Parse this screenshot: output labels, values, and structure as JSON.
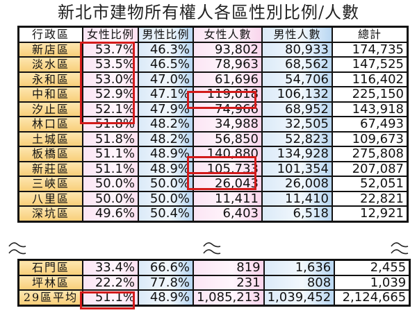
{
  "title": "新北市建物所有權人各區性別比例/人數",
  "headers": {
    "district": "行政區",
    "female_ratio": "女性比例",
    "male_ratio": "男性比例",
    "female_count": "女性人數",
    "male_count": "男性人數",
    "total": "總計"
  },
  "rows": [
    {
      "district": "新店區",
      "female_ratio": "53.7%",
      "male_ratio": "46.3%",
      "female_count": "93,802",
      "male_count": "80,933",
      "total": "174,735"
    },
    {
      "district": "淡水區",
      "female_ratio": "53.5%",
      "male_ratio": "46.5%",
      "female_count": "78,963",
      "male_count": "68,562",
      "total": "147,525"
    },
    {
      "district": "永和區",
      "female_ratio": "53.0%",
      "male_ratio": "47.0%",
      "female_count": "61,696",
      "male_count": "54,706",
      "total": "116,402"
    },
    {
      "district": "中和區",
      "female_ratio": "52.9%",
      "male_ratio": "47.1%",
      "female_count": "119,018",
      "male_count": "106,132",
      "total": "225,150"
    },
    {
      "district": "汐止區",
      "female_ratio": "52.1%",
      "male_ratio": "47.9%",
      "female_count": "74,966",
      "male_count": "68,952",
      "total": "143,918"
    },
    {
      "district": "林口區",
      "female_ratio": "51.8%",
      "male_ratio": "48.2%",
      "female_count": "34,988",
      "male_count": "32,505",
      "total": "67,493"
    },
    {
      "district": "土城區",
      "female_ratio": "51.8%",
      "male_ratio": "48.2%",
      "female_count": "56,850",
      "male_count": "52,823",
      "total": "109,673"
    },
    {
      "district": "板橋區",
      "female_ratio": "51.1%",
      "male_ratio": "48.9%",
      "female_count": "140,880",
      "male_count": "134,928",
      "total": "275,808"
    },
    {
      "district": "新莊區",
      "female_ratio": "51.1%",
      "male_ratio": "48.9%",
      "female_count": "105,733",
      "male_count": "101,354",
      "total": "207,087"
    },
    {
      "district": "三峽區",
      "female_ratio": "50.0%",
      "male_ratio": "50.0%",
      "female_count": "26,043",
      "male_count": "26,008",
      "total": "52,051"
    },
    {
      "district": "八里區",
      "female_ratio": "50.0%",
      "male_ratio": "50.0%",
      "female_count": "11,411",
      "male_count": "11,410",
      "total": "22,821"
    },
    {
      "district": "深坑區",
      "female_ratio": "49.6%",
      "male_ratio": "50.4%",
      "female_count": "6,403",
      "male_count": "6,518",
      "total": "12,921"
    }
  ],
  "lower_rows": [
    {
      "district": "石門區",
      "female_ratio": "33.4%",
      "male_ratio": "66.6%",
      "female_count": "819",
      "male_count": "1,636",
      "total": "2,455"
    },
    {
      "district": "坪林區",
      "female_ratio": "22.2%",
      "male_ratio": "77.8%",
      "female_count": "231",
      "male_count": "808",
      "total": "1,039"
    },
    {
      "district": "29區平均",
      "female_ratio": "51.1%",
      "male_ratio": "48.9%",
      "female_count": "1,085,213",
      "male_count": "1,039,452",
      "total": "2,124,665"
    }
  ],
  "highlights": {
    "female_ratio_top5": "rows 0-4",
    "female_count_cells": [
      "中和區",
      "板橋區",
      "新莊區"
    ],
    "average_female_ratio": "29區平均",
    "color": "#d21a1a"
  },
  "colors": {
    "district_bg": "#f8cf7a",
    "female_bg": "#fbe5f4",
    "male_bg": "#b9d7f2",
    "border": "#111111"
  },
  "break_icon": "wavy-break-icon"
}
